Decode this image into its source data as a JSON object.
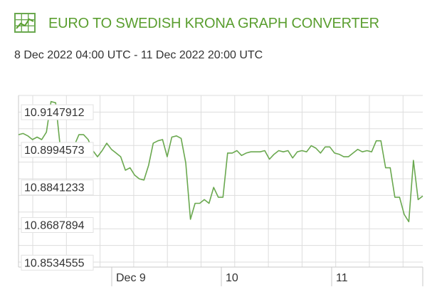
{
  "header": {
    "icon": "chart-grid-icon",
    "title": "EURO TO SWEDISH KRONA GRAPH CONVERTER",
    "date_range": "8 Dec 2022 04:00 UTC - 11 Dec 2022 20:00 UTC"
  },
  "colors": {
    "accent": "#5a9e2f",
    "line": "#6aa84f",
    "grid": "#dddddd",
    "text": "#333333"
  },
  "chart_data": {
    "type": "line",
    "title": "",
    "xlabel": "",
    "ylabel": "",
    "x_ticks": [
      "Dec 9",
      "10",
      "11"
    ],
    "y_ticks": [
      "10.9147912",
      "10.8994573",
      "10.8841233",
      "10.8687894",
      "10.8534555"
    ],
    "y_tick_values": [
      10.9147912,
      10.8994573,
      10.8841233,
      10.8687894,
      10.8534555
    ],
    "ylim": [
      10.8515,
      10.9215
    ],
    "grid": true,
    "series": [
      {
        "values": [
          10.9055,
          10.906,
          10.905,
          10.9035,
          10.9045,
          10.9035,
          10.9065,
          10.919,
          10.9185,
          10.9,
          10.902,
          10.9005,
          10.901,
          10.9055,
          10.9055,
          10.9035,
          10.899,
          10.8965,
          10.899,
          10.902,
          10.8995,
          10.898,
          10.8965,
          10.891,
          10.892,
          10.889,
          10.8875,
          10.887,
          10.893,
          10.902,
          10.903,
          10.9035,
          10.8965,
          10.9045,
          10.905,
          10.904,
          10.894,
          10.871,
          10.8775,
          10.8775,
          10.879,
          10.8775,
          10.884,
          10.88,
          10.88,
          10.898,
          10.898,
          10.899,
          10.897,
          10.898,
          10.8985,
          10.8985,
          10.8985,
          10.899,
          10.8955,
          10.8975,
          10.899,
          10.8985,
          10.899,
          10.896,
          10.8985,
          10.899,
          10.8985,
          10.901,
          10.9,
          10.898,
          10.9005,
          10.9005,
          10.898,
          10.8975,
          10.8965,
          10.8965,
          10.898,
          10.8995,
          10.8985,
          10.899,
          10.8985,
          10.903,
          10.903,
          10.892,
          10.892,
          10.88,
          10.88,
          10.873,
          10.87,
          10.895,
          10.879,
          10.8805
        ]
      }
    ]
  }
}
